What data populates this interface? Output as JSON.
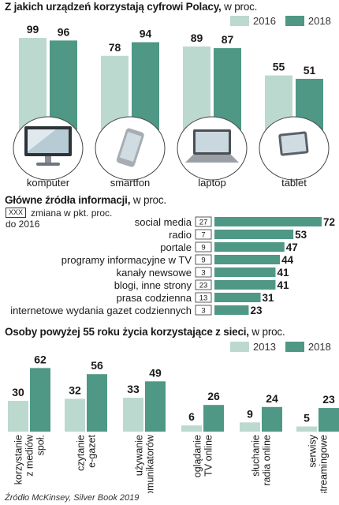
{
  "colors": {
    "light": "#bcd9d0",
    "dark": "#4e9885",
    "device_bg": "#ffffff",
    "device_gray": "#8b9097"
  },
  "section1": {
    "title": "Z jakich urządzeń korzystają cyfrowi Polacy,",
    "unit": "w proc.",
    "legend": [
      "2016",
      "2018"
    ]
  },
  "section2": {
    "title": "Główne źródła informacji,",
    "unit": "w proc.",
    "note_box": "XXX",
    "note_line1": "zmiana w pkt. proc.",
    "note_line2": "do 2016"
  },
  "section3": {
    "title": "Osoby powyżej 55 roku życia korzystające z sieci,",
    "unit": "w proc.",
    "legend": [
      "2013",
      "2018"
    ]
  },
  "source": "Źródło McKinsey, Silver Book 2019",
  "chart_data": [
    {
      "type": "bar",
      "title": "Z jakich urządzeń korzystają cyfrowi Polacy, w proc.",
      "categories": [
        "komputer",
        "smartfon",
        "laptop",
        "tablet"
      ],
      "series": [
        {
          "name": "2016",
          "values": [
            99,
            78,
            89,
            55
          ]
        },
        {
          "name": "2018",
          "values": [
            96,
            94,
            87,
            51
          ]
        }
      ],
      "icons": [
        "monitor-icon",
        "smartphone-icon",
        "laptop-icon",
        "tablet-icon"
      ],
      "ylim": [
        0,
        100
      ],
      "legend": "top-right"
    },
    {
      "type": "bar",
      "orientation": "horizontal",
      "title": "Główne źródła informacji, w proc.",
      "categories": [
        "social media",
        "radio",
        "portale",
        "programy informacyjne w TV",
        "kanały newsowe",
        "blogi, inne strony",
        "prasa codzienna",
        "internetowe wydania gazet codziennych"
      ],
      "values": [
        72,
        53,
        47,
        44,
        41,
        41,
        31,
        23
      ],
      "change": [
        "27",
        "7",
        "9",
        "9",
        "3",
        "23",
        "13",
        "3"
      ],
      "xlim": [
        0,
        72
      ]
    },
    {
      "type": "bar",
      "title": "Osoby powyżej 55 roku życia korzystające z sieci, w proc.",
      "categories": [
        "korzystanie z mediów społ.",
        "czytanie e-gazet",
        "używanie komunikatorów",
        "oglądanie TV online",
        "słuchanie radia online",
        "serwisy streamingowe"
      ],
      "category_lines": [
        [
          "korzystanie",
          "z mediów",
          "społ."
        ],
        [
          "czytanie",
          "e-gazet"
        ],
        [
          "używanie",
          "komunikatorów"
        ],
        [
          "oglądanie",
          "TV online"
        ],
        [
          "słuchanie",
          "radia online"
        ],
        [
          "serwisy",
          "streamingowe"
        ]
      ],
      "series": [
        {
          "name": "2013",
          "values": [
            30,
            32,
            33,
            6,
            9,
            5
          ]
        },
        {
          "name": "2018",
          "values": [
            62,
            56,
            49,
            26,
            24,
            23
          ]
        }
      ],
      "ylim": [
        0,
        62
      ],
      "legend": "top-right"
    }
  ]
}
